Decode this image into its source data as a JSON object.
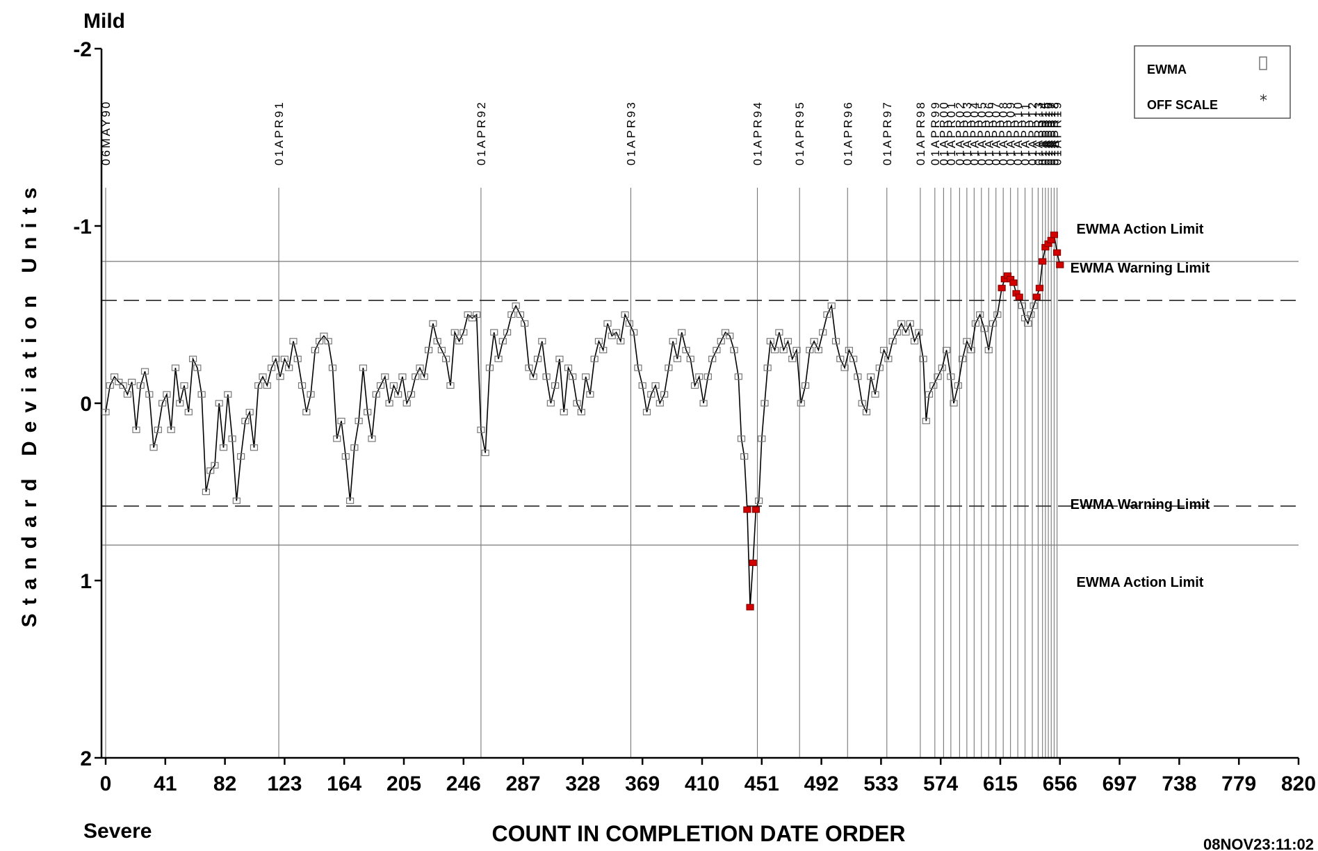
{
  "chart_data": {
    "type": "line",
    "title": "",
    "xlabel": "COUNT IN COMPLETION DATE ORDER",
    "ylabel": "Standard Deviation Units",
    "xlim": [
      0,
      820
    ],
    "ylim": [
      2,
      -2
    ],
    "x_ticks": [
      "0",
      "41",
      "82",
      "123",
      "164",
      "205",
      "246",
      "287",
      "328",
      "369",
      "410",
      "451",
      "492",
      "533",
      "574",
      "615",
      "656",
      "697",
      "738",
      "779",
      "820"
    ],
    "y_ticks": [
      {
        "value": -2,
        "label": "-2"
      },
      {
        "value": -1,
        "label": "-1"
      },
      {
        "value": 0,
        "label": "0"
      },
      {
        "value": 1,
        "label": "1"
      },
      {
        "value": 2,
        "label": "2"
      }
    ],
    "top_label": "Mild",
    "bottom_label": "Severe",
    "timestamp": "08NOV23:11:02",
    "legend": [
      {
        "label": "EWMA",
        "symbol": "square"
      },
      {
        "label": "OFF SCALE",
        "symbol": "star"
      }
    ],
    "reference_lines": [
      {
        "y": -0.8,
        "style": "solid",
        "label": "EWMA Action Limit"
      },
      {
        "y": -0.58,
        "style": "dashed",
        "label": "EWMA Warning Limit"
      },
      {
        "y": 0.58,
        "style": "dashed",
        "label": "EWMA Warning Limit"
      },
      {
        "y": 0.8,
        "style": "solid",
        "label": "EWMA Action Limit"
      }
    ],
    "date_markers": [
      {
        "x": 0,
        "label": "06MAY90"
      },
      {
        "x": 119,
        "label": "01APR91"
      },
      {
        "x": 258,
        "label": "01APR92"
      },
      {
        "x": 361,
        "label": "01APR93"
      },
      {
        "x": 448,
        "label": "01APR94"
      },
      {
        "x": 477,
        "label": "01APR95"
      },
      {
        "x": 510,
        "label": "01APR96"
      },
      {
        "x": 537,
        "label": "01APR97"
      },
      {
        "x": 560,
        "label": "01APR98"
      },
      {
        "x": 570,
        "label": "01APR99"
      },
      {
        "x": 576,
        "label": "01APR00"
      },
      {
        "x": 581,
        "label": "01APR01"
      },
      {
        "x": 587,
        "label": "01APR02"
      },
      {
        "x": 592,
        "label": "01APR03"
      },
      {
        "x": 597,
        "label": "01APR04"
      },
      {
        "x": 602,
        "label": "01APR05"
      },
      {
        "x": 607,
        "label": "01APR06"
      },
      {
        "x": 612,
        "label": "01APR07"
      },
      {
        "x": 617,
        "label": "01APR08"
      },
      {
        "x": 622,
        "label": "01APR09"
      },
      {
        "x": 627,
        "label": "01APR10"
      },
      {
        "x": 632,
        "label": "01APR11"
      },
      {
        "x": 637,
        "label": "01APR12"
      },
      {
        "x": 641,
        "label": "01APR13"
      },
      {
        "x": 644,
        "label": "01APR14"
      },
      {
        "x": 646,
        "label": "01APR15"
      },
      {
        "x": 648,
        "label": "01APR16"
      },
      {
        "x": 650,
        "label": "01APR17"
      },
      {
        "x": 652,
        "label": "01APR18"
      },
      {
        "x": 654,
        "label": "01APR19"
      }
    ],
    "series": [
      {
        "points": [
          [
            0,
            0.05
          ],
          [
            3,
            -0.1
          ],
          [
            6,
            -0.15
          ],
          [
            9,
            -0.12
          ],
          [
            12,
            -0.1
          ],
          [
            15,
            -0.05
          ],
          [
            18,
            -0.12
          ],
          [
            21,
            0.15
          ],
          [
            24,
            -0.1
          ],
          [
            27,
            -0.18
          ],
          [
            30,
            -0.05
          ],
          [
            33,
            0.25
          ],
          [
            36,
            0.15
          ],
          [
            39,
            0.0
          ],
          [
            42,
            -0.05
          ],
          [
            45,
            0.15
          ],
          [
            48,
            -0.2
          ],
          [
            51,
            0.0
          ],
          [
            54,
            -0.1
          ],
          [
            57,
            0.05
          ],
          [
            60,
            -0.25
          ],
          [
            63,
            -0.2
          ],
          [
            66,
            -0.05
          ],
          [
            69,
            0.5
          ],
          [
            72,
            0.38
          ],
          [
            75,
            0.35
          ],
          [
            78,
            0.0
          ],
          [
            81,
            0.25
          ],
          [
            84,
            -0.05
          ],
          [
            87,
            0.2
          ],
          [
            90,
            0.55
          ],
          [
            93,
            0.3
          ],
          [
            96,
            0.1
          ],
          [
            99,
            0.05
          ],
          [
            102,
            0.25
          ],
          [
            105,
            -0.1
          ],
          [
            108,
            -0.15
          ],
          [
            111,
            -0.1
          ],
          [
            114,
            -0.2
          ],
          [
            117,
            -0.25
          ],
          [
            120,
            -0.15
          ],
          [
            123,
            -0.25
          ],
          [
            126,
            -0.2
          ],
          [
            129,
            -0.35
          ],
          [
            132,
            -0.25
          ],
          [
            135,
            -0.1
          ],
          [
            138,
            0.05
          ],
          [
            141,
            -0.05
          ],
          [
            144,
            -0.3
          ],
          [
            147,
            -0.35
          ],
          [
            150,
            -0.38
          ],
          [
            153,
            -0.35
          ],
          [
            156,
            -0.2
          ],
          [
            159,
            0.2
          ],
          [
            162,
            0.1
          ],
          [
            165,
            0.3
          ],
          [
            168,
            0.55
          ],
          [
            171,
            0.25
          ],
          [
            174,
            0.1
          ],
          [
            177,
            -0.2
          ],
          [
            180,
            0.05
          ],
          [
            183,
            0.2
          ],
          [
            186,
            -0.05
          ],
          [
            189,
            -0.1
          ],
          [
            192,
            -0.15
          ],
          [
            195,
            0.0
          ],
          [
            198,
            -0.1
          ],
          [
            201,
            -0.05
          ],
          [
            204,
            -0.15
          ],
          [
            207,
            0.0
          ],
          [
            210,
            -0.05
          ],
          [
            213,
            -0.15
          ],
          [
            216,
            -0.2
          ],
          [
            219,
            -0.15
          ],
          [
            222,
            -0.3
          ],
          [
            225,
            -0.45
          ],
          [
            228,
            -0.35
          ],
          [
            231,
            -0.3
          ],
          [
            234,
            -0.25
          ],
          [
            237,
            -0.1
          ],
          [
            240,
            -0.4
          ],
          [
            243,
            -0.35
          ],
          [
            246,
            -0.4
          ],
          [
            249,
            -0.5
          ],
          [
            252,
            -0.48
          ],
          [
            255,
            -0.5
          ],
          [
            258,
            0.15
          ],
          [
            261,
            0.28
          ],
          [
            264,
            -0.2
          ],
          [
            267,
            -0.4
          ],
          [
            270,
            -0.25
          ],
          [
            273,
            -0.35
          ],
          [
            276,
            -0.4
          ],
          [
            279,
            -0.5
          ],
          [
            282,
            -0.55
          ],
          [
            285,
            -0.5
          ],
          [
            288,
            -0.45
          ],
          [
            291,
            -0.2
          ],
          [
            294,
            -0.15
          ],
          [
            297,
            -0.25
          ],
          [
            300,
            -0.35
          ],
          [
            303,
            -0.15
          ],
          [
            306,
            0.0
          ],
          [
            309,
            -0.1
          ],
          [
            312,
            -0.25
          ],
          [
            315,
            0.05
          ],
          [
            318,
            -0.2
          ],
          [
            321,
            -0.15
          ],
          [
            324,
            0.0
          ],
          [
            327,
            0.05
          ],
          [
            330,
            -0.15
          ],
          [
            333,
            -0.05
          ],
          [
            336,
            -0.25
          ],
          [
            339,
            -0.35
          ],
          [
            342,
            -0.3
          ],
          [
            345,
            -0.45
          ],
          [
            348,
            -0.38
          ],
          [
            351,
            -0.4
          ],
          [
            354,
            -0.35
          ],
          [
            357,
            -0.5
          ],
          [
            360,
            -0.45
          ],
          [
            363,
            -0.4
          ],
          [
            366,
            -0.2
          ],
          [
            369,
            -0.1
          ],
          [
            372,
            0.05
          ],
          [
            375,
            -0.05
          ],
          [
            378,
            -0.1
          ],
          [
            381,
            0.0
          ],
          [
            384,
            -0.05
          ],
          [
            387,
            -0.2
          ],
          [
            390,
            -0.35
          ],
          [
            393,
            -0.25
          ],
          [
            396,
            -0.4
          ],
          [
            399,
            -0.3
          ],
          [
            402,
            -0.25
          ],
          [
            405,
            -0.1
          ],
          [
            408,
            -0.15
          ],
          [
            411,
            0.0
          ],
          [
            414,
            -0.15
          ],
          [
            417,
            -0.25
          ],
          [
            420,
            -0.3
          ],
          [
            423,
            -0.35
          ],
          [
            426,
            -0.4
          ],
          [
            429,
            -0.38
          ],
          [
            432,
            -0.3
          ],
          [
            435,
            -0.15
          ],
          [
            437,
            0.2
          ],
          [
            439,
            0.3
          ],
          [
            441,
            0.6
          ],
          [
            443,
            1.15
          ],
          [
            445,
            0.9
          ],
          [
            447,
            0.6
          ],
          [
            449,
            0.55
          ],
          [
            451,
            0.2
          ],
          [
            453,
            0.0
          ],
          [
            455,
            -0.2
          ],
          [
            457,
            -0.35
          ],
          [
            460,
            -0.3
          ],
          [
            463,
            -0.4
          ],
          [
            466,
            -0.3
          ],
          [
            469,
            -0.35
          ],
          [
            472,
            -0.25
          ],
          [
            475,
            -0.3
          ],
          [
            478,
            0.0
          ],
          [
            481,
            -0.1
          ],
          [
            484,
            -0.3
          ],
          [
            487,
            -0.35
          ],
          [
            490,
            -0.3
          ],
          [
            493,
            -0.4
          ],
          [
            496,
            -0.5
          ],
          [
            499,
            -0.55
          ],
          [
            502,
            -0.35
          ],
          [
            505,
            -0.25
          ],
          [
            508,
            -0.2
          ],
          [
            511,
            -0.3
          ],
          [
            514,
            -0.25
          ],
          [
            517,
            -0.15
          ],
          [
            520,
            0.0
          ],
          [
            523,
            0.05
          ],
          [
            526,
            -0.15
          ],
          [
            529,
            -0.05
          ],
          [
            532,
            -0.2
          ],
          [
            535,
            -0.3
          ],
          [
            538,
            -0.25
          ],
          [
            541,
            -0.35
          ],
          [
            544,
            -0.4
          ],
          [
            547,
            -0.45
          ],
          [
            550,
            -0.4
          ],
          [
            553,
            -0.45
          ],
          [
            556,
            -0.35
          ],
          [
            559,
            -0.4
          ],
          [
            562,
            -0.25
          ],
          [
            564,
            0.1
          ],
          [
            566,
            -0.05
          ],
          [
            569,
            -0.1
          ],
          [
            572,
            -0.15
          ],
          [
            575,
            -0.2
          ],
          [
            578,
            -0.3
          ],
          [
            581,
            -0.15
          ],
          [
            583,
            0.0
          ],
          [
            586,
            -0.1
          ],
          [
            589,
            -0.25
          ],
          [
            592,
            -0.35
          ],
          [
            595,
            -0.3
          ],
          [
            598,
            -0.45
          ],
          [
            601,
            -0.5
          ],
          [
            604,
            -0.42
          ],
          [
            607,
            -0.3
          ],
          [
            610,
            -0.45
          ],
          [
            613,
            -0.5
          ],
          [
            616,
            -0.65
          ],
          [
            618,
            -0.7
          ],
          [
            620,
            -0.72
          ],
          [
            622,
            -0.7
          ],
          [
            624,
            -0.68
          ],
          [
            626,
            -0.62
          ],
          [
            628,
            -0.6
          ],
          [
            630,
            -0.55
          ],
          [
            632,
            -0.48
          ],
          [
            634,
            -0.45
          ],
          [
            636,
            -0.5
          ],
          [
            638,
            -0.55
          ],
          [
            640,
            -0.6
          ],
          [
            642,
            -0.65
          ],
          [
            644,
            -0.8
          ],
          [
            646,
            -0.88
          ],
          [
            648,
            -0.9
          ],
          [
            650,
            -0.92
          ],
          [
            652,
            -0.95
          ],
          [
            654,
            -0.85
          ],
          [
            656,
            -0.78
          ]
        ]
      }
    ]
  }
}
